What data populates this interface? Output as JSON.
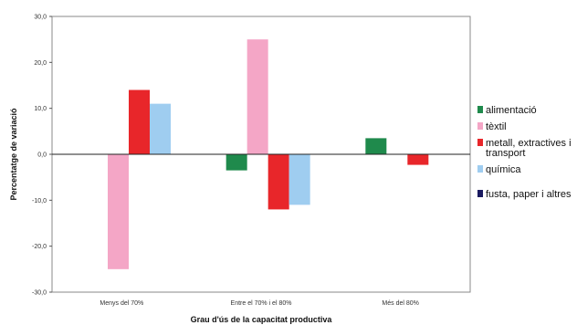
{
  "chart_data": {
    "type": "bar",
    "title": "",
    "xlabel": "Grau d'ús de la capacitat productiva",
    "ylabel": "Percentatge de variació",
    "ylim": [
      -30,
      30
    ],
    "ytick_step": 10,
    "ytick_labels": [
      "30,0",
      "20,0",
      "10,0",
      "0,0",
      "-10,0",
      "-20,0",
      "-30,0"
    ],
    "grid": false,
    "legend_position": "right",
    "categories": [
      "Menys del 70%",
      "Entre el 70% i el 80%",
      "Més del 80%"
    ],
    "series": [
      {
        "name": "alimentació",
        "color": "#1f8a4c",
        "values": [
          0,
          -3.5,
          3.5
        ]
      },
      {
        "name": "tèxtil",
        "color": "#f4a6c6",
        "values": [
          -25,
          25,
          0
        ]
      },
      {
        "name": "metall, extractives i transport",
        "color": "#e8262a",
        "values": [
          14,
          -12,
          -2.3
        ]
      },
      {
        "name": "química",
        "color": "#9fcdf0",
        "values": [
          11,
          -11,
          0
        ]
      },
      {
        "name": "fusta, paper i altres",
        "color": "#1a1a60",
        "values": [
          0,
          0,
          0
        ]
      }
    ]
  },
  "legend_lines": [
    [
      "alimentació"
    ],
    [
      "tèxtil"
    ],
    [
      "metall, extractives i",
      "transport"
    ],
    [
      "química"
    ],
    [
      "fusta, paper i altres"
    ]
  ]
}
